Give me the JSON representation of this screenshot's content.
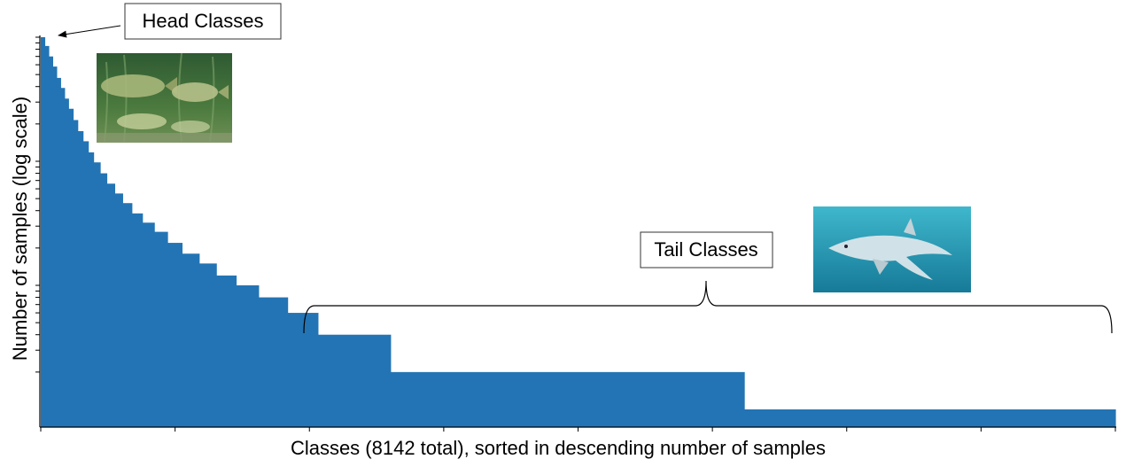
{
  "colors": {
    "bar": "#2374b4",
    "axis": "#000000",
    "callout_border": "#333333",
    "brace": "#000000",
    "fish_water": "#3f6e3a",
    "shark_water": "#1f9bb6"
  },
  "chart_data": {
    "type": "bar",
    "title": "",
    "xlabel": "Classes (8142 total), sorted in descending number of samples",
    "ylabel": "Number of samples (log scale)",
    "y_scale": "log",
    "x_ticks_labeled": false,
    "y_ticks_labeled": false,
    "grid": false,
    "legend": "none",
    "total_classes": 8142,
    "xlim": [
      0,
      8142
    ],
    "ylim": [
      1,
      1000
    ],
    "steps": [
      {
        "rank_start": 0,
        "rank_end": 30,
        "samples": 1000
      },
      {
        "rank_start": 30,
        "rank_end": 60,
        "samples": 850
      },
      {
        "rank_start": 60,
        "rank_end": 90,
        "samples": 700
      },
      {
        "rank_start": 90,
        "rank_end": 120,
        "samples": 580
      },
      {
        "rank_start": 120,
        "rank_end": 150,
        "samples": 470
      },
      {
        "rank_start": 150,
        "rank_end": 180,
        "samples": 390
      },
      {
        "rank_start": 180,
        "rank_end": 210,
        "samples": 320
      },
      {
        "rank_start": 210,
        "rank_end": 245,
        "samples": 265
      },
      {
        "rank_start": 245,
        "rank_end": 280,
        "samples": 215
      },
      {
        "rank_start": 280,
        "rank_end": 320,
        "samples": 175
      },
      {
        "rank_start": 320,
        "rank_end": 360,
        "samples": 145
      },
      {
        "rank_start": 360,
        "rank_end": 400,
        "samples": 118
      },
      {
        "rank_start": 400,
        "rank_end": 450,
        "samples": 98
      },
      {
        "rank_start": 450,
        "rank_end": 500,
        "samples": 80
      },
      {
        "rank_start": 500,
        "rank_end": 560,
        "samples": 66
      },
      {
        "rank_start": 560,
        "rank_end": 620,
        "samples": 55
      },
      {
        "rank_start": 620,
        "rank_end": 690,
        "samples": 46
      },
      {
        "rank_start": 690,
        "rank_end": 770,
        "samples": 38
      },
      {
        "rank_start": 770,
        "rank_end": 860,
        "samples": 32
      },
      {
        "rank_start": 860,
        "rank_end": 960,
        "samples": 27
      },
      {
        "rank_start": 960,
        "rank_end": 1070,
        "samples": 22
      },
      {
        "rank_start": 1070,
        "rank_end": 1200,
        "samples": 18
      },
      {
        "rank_start": 1200,
        "rank_end": 1330,
        "samples": 15
      },
      {
        "rank_start": 1330,
        "rank_end": 1480,
        "samples": 12
      },
      {
        "rank_start": 1480,
        "rank_end": 1650,
        "samples": 10
      },
      {
        "rank_start": 1650,
        "rank_end": 1870,
        "samples": 8
      },
      {
        "rank_start": 1870,
        "rank_end": 2100,
        "samples": 6
      },
      {
        "rank_start": 2100,
        "rank_end": 2650,
        "samples": 4
      },
      {
        "rank_start": 2650,
        "rank_end": 5330,
        "samples": 2
      },
      {
        "rank_start": 5330,
        "rank_end": 8142,
        "samples": 1
      }
    ],
    "annotations": {
      "head_label": "Head Classes",
      "tail_label": "Tail Classes",
      "tail_range": [
        2000,
        8142
      ]
    }
  }
}
